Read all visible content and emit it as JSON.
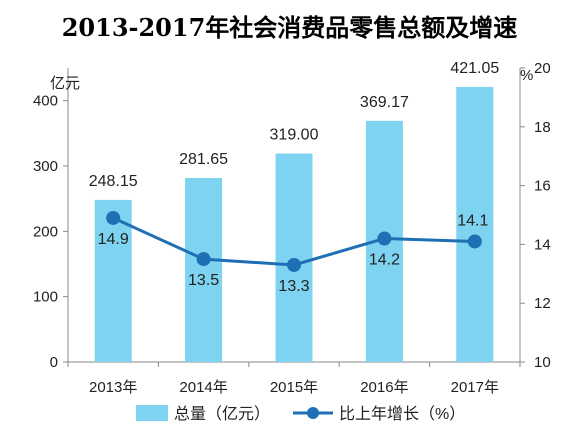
{
  "chart_data": {
    "type": "bar",
    "title": "2013-2017年社会消费品零售总额及增速",
    "categories": [
      "2013年",
      "2014年",
      "2015年",
      "2016年",
      "2017年"
    ],
    "series": [
      {
        "name": "总量（亿元）",
        "kind": "bar",
        "axis": "left",
        "color": "#7DD3F0",
        "values": [
          248.15,
          281.65,
          319.0,
          369.17,
          421.05
        ],
        "labels": [
          "248.15",
          "281.65",
          "319.00",
          "369.17",
          "421.05"
        ]
      },
      {
        "name": "比上年增长（%）",
        "kind": "line",
        "axis": "right",
        "color": "#1F6FB5",
        "values": [
          14.9,
          13.5,
          13.3,
          14.2,
          14.1
        ],
        "labels": [
          "14.9",
          "13.5",
          "13.3",
          "14.2",
          "14.1"
        ]
      }
    ],
    "y_left": {
      "unit": "亿元",
      "range": [
        0,
        450
      ],
      "ticks": [
        0,
        100,
        200,
        300,
        400
      ]
    },
    "y_right": {
      "unit": "%",
      "range": [
        10,
        20
      ],
      "ticks": [
        10,
        12,
        14,
        16,
        18,
        20
      ]
    },
    "grid": false,
    "legend_position": "bottom"
  }
}
